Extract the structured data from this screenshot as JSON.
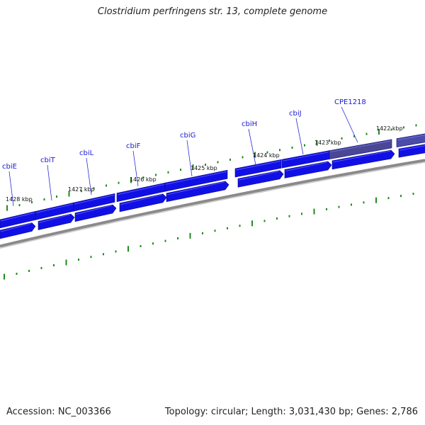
{
  "title": "Clostridium perfringens str. 13, complete genome",
  "accession_text": "Accession: NC_003366",
  "stats_text": "Topology: circular; Length: 3,031,430 bp; Genes: 2,786",
  "colors": {
    "gene": "#1010e6",
    "gene_highlight": "#4a4894",
    "leader": "#2a2ad8",
    "label": "#1a1ad0",
    "tick": "#1f8a1f",
    "backbone": "#8a8a8a"
  },
  "gene_labels": [
    {
      "name": "cbiE",
      "highlight": false
    },
    {
      "name": "cbiT",
      "highlight": false
    },
    {
      "name": "cbiL",
      "highlight": false
    },
    {
      "name": "cbiF",
      "highlight": false
    },
    {
      "name": "cbiG",
      "highlight": false
    },
    {
      "name": "cbiH",
      "highlight": false
    },
    {
      "name": "cbiJ",
      "highlight": false
    },
    {
      "name": "CPE1218",
      "highlight": true
    }
  ],
  "kbp_labels": [
    "1428 kbp",
    "1427 kbp",
    "1426 kbp",
    "1425 kbp",
    "1424 kbp",
    "1423 kbp",
    "1422 kbp"
  ]
}
